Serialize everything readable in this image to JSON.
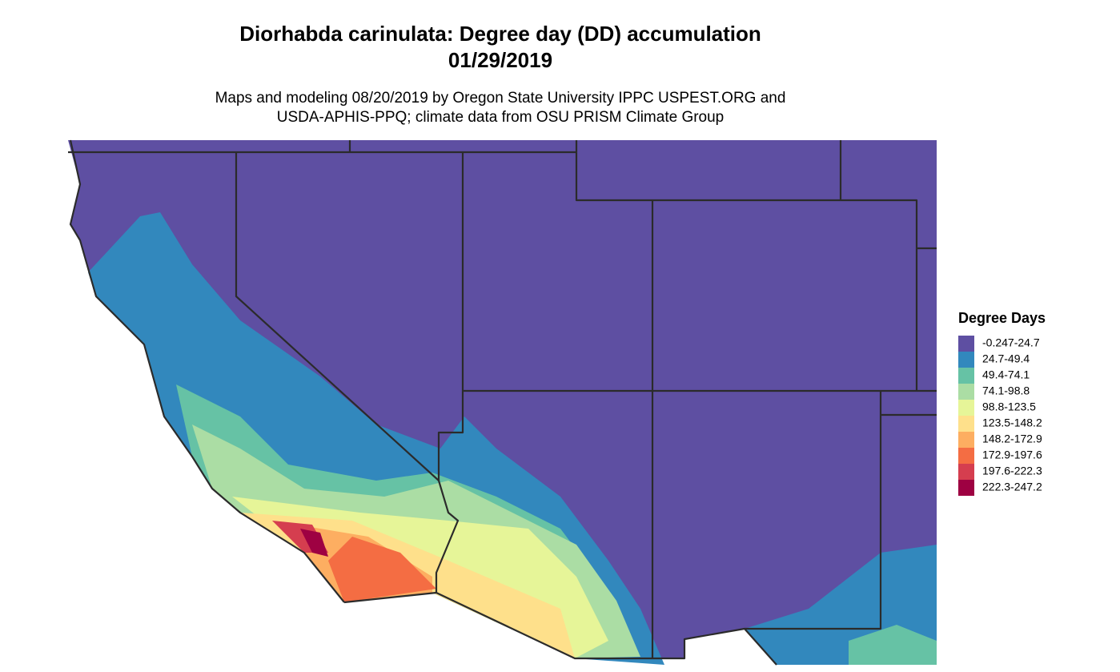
{
  "header": {
    "title": [
      "Diorhabda carinulata: Degree day (DD) accumulation",
      "01/29/2019"
    ],
    "subtitle": [
      "Maps and modeling 08/20/2019 by Oregon State University IPPC USPEST.ORG and",
      "USDA-APHIS-PPQ; climate data from OSU PRISM Climate Group"
    ]
  },
  "legend": {
    "title": "Degree Days",
    "items": [
      {
        "label": "-0.247-24.7",
        "color": "#5e4fa2"
      },
      {
        "label": "24.7-49.4",
        "color": "#3288bd"
      },
      {
        "label": "49.4-74.1",
        "color": "#66c2a5"
      },
      {
        "label": "74.1-98.8",
        "color": "#abdda4"
      },
      {
        "label": "98.8-123.5",
        "color": "#e6f598"
      },
      {
        "label": "123.5-148.2",
        "color": "#fee08b"
      },
      {
        "label": "148.2-172.9",
        "color": "#fdae61"
      },
      {
        "label": "172.9-197.6",
        "color": "#f46d43"
      },
      {
        "label": "197.6-222.3",
        "color": "#d53e4f"
      },
      {
        "label": "222.3-247.2",
        "color": "#9e0142"
      }
    ]
  }
}
